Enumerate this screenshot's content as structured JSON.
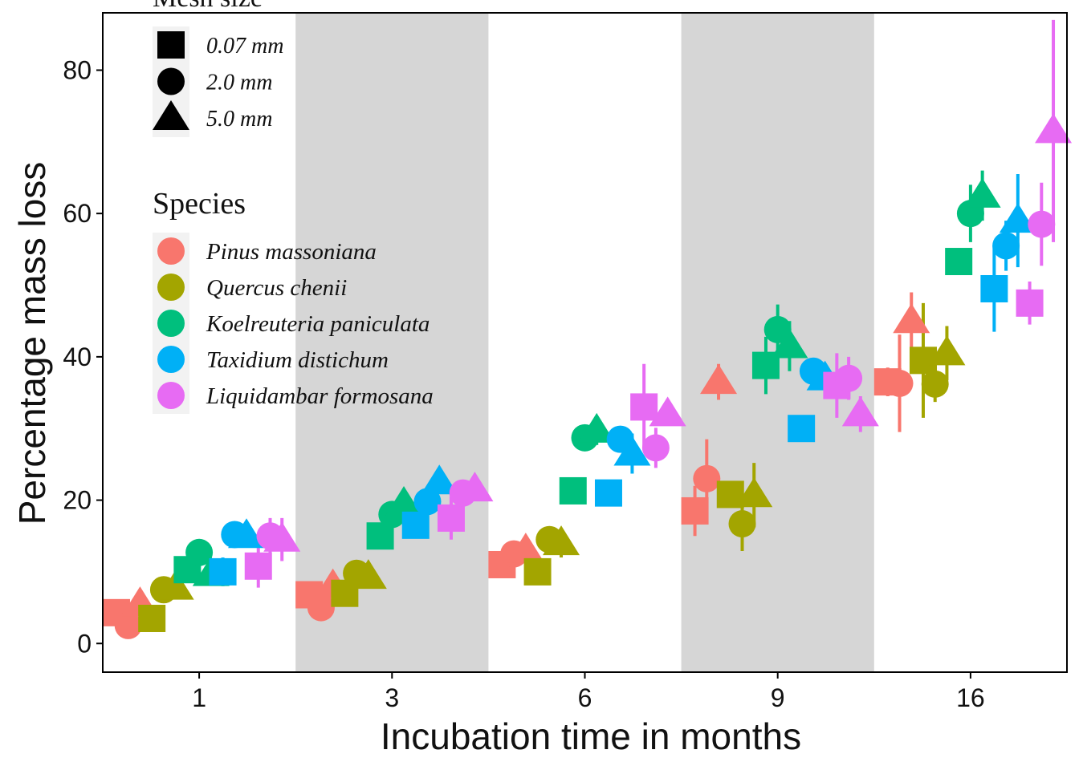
{
  "chart_data": {
    "type": "scatter",
    "title": "",
    "xlabel": "Incubation time in months",
    "ylabel": "Percentage mass loss",
    "categories": [
      "1",
      "3",
      "6",
      "9",
      "16"
    ],
    "ylim": [
      -4,
      88
    ],
    "yticks": [
      0,
      20,
      40,
      60,
      80
    ],
    "grid": false,
    "shaded_categories": [
      "3",
      "9"
    ],
    "colors": {
      "shade": "#d6d6d6",
      "Pinus massoniana": "#f8766d",
      "Quercus chenii": "#a3a500",
      "Koelreuteria paniculata": "#00bf7d",
      "Taxidium distichum": "#00b0f6",
      "Liquidambar formosana": "#e76bf3"
    },
    "legends": {
      "mesh": {
        "title": "Mesh size",
        "items": [
          {
            "label": "0.07 mm",
            "shape": "square"
          },
          {
            "label": "2.0 mm",
            "shape": "circle"
          },
          {
            "label": "5.0 mm",
            "shape": "triangle"
          }
        ]
      },
      "species": {
        "title": "Species",
        "items": [
          "Pinus massoniana",
          "Quercus chenii",
          "Koelreuteria paniculata",
          "Taxidium distichum",
          "Liquidambar formosana"
        ]
      }
    },
    "series": [
      {
        "name": "Pinus massoniana",
        "points": [
          {
            "month": "1",
            "mesh": "0.07 mm",
            "y": 4.3,
            "err": 0
          },
          {
            "month": "1",
            "mesh": "2.0 mm",
            "y": 2.5,
            "err": 0.8
          },
          {
            "month": "1",
            "mesh": "5.0 mm",
            "y": 5.5,
            "err": 0.8
          },
          {
            "month": "3",
            "mesh": "0.07 mm",
            "y": 6.8,
            "err": 0
          },
          {
            "month": "3",
            "mesh": "2.0 mm",
            "y": 5.0,
            "err": 1.5
          },
          {
            "month": "3",
            "mesh": "5.0 mm",
            "y": 8.0,
            "err": 1.5
          },
          {
            "month": "6",
            "mesh": "0.07 mm",
            "y": 11.0,
            "err": 0
          },
          {
            "month": "6",
            "mesh": "2.0 mm",
            "y": 12.5,
            "err": 0
          },
          {
            "month": "6",
            "mesh": "5.0 mm",
            "y": 13.0,
            "err": 0
          },
          {
            "month": "9",
            "mesh": "0.07 mm",
            "y": 18.5,
            "err": 3.5
          },
          {
            "month": "9",
            "mesh": "2.0 mm",
            "y": 23.0,
            "err": 5.5
          },
          {
            "month": "9",
            "mesh": "5.0 mm",
            "y": 36.5,
            "err": 2.5
          },
          {
            "month": "16",
            "mesh": "0.07 mm",
            "y": 36.5,
            "err": 2.0
          },
          {
            "month": "16",
            "mesh": "2.0 mm",
            "y": 36.3,
            "err": 6.8
          },
          {
            "month": "16",
            "mesh": "5.0 mm",
            "y": 45.0,
            "err": 4.0
          }
        ]
      },
      {
        "name": "Quercus chenii",
        "points": [
          {
            "month": "1",
            "mesh": "0.07 mm",
            "y": 3.5,
            "err": 0.8
          },
          {
            "month": "1",
            "mesh": "2.0 mm",
            "y": 7.5,
            "err": 0
          },
          {
            "month": "1",
            "mesh": "5.0 mm",
            "y": 7.8,
            "err": 0
          },
          {
            "month": "3",
            "mesh": "0.07 mm",
            "y": 7.0,
            "err": 0
          },
          {
            "month": "3",
            "mesh": "2.0 mm",
            "y": 9.8,
            "err": 0
          },
          {
            "month": "3",
            "mesh": "5.0 mm",
            "y": 9.3,
            "err": 0
          },
          {
            "month": "6",
            "mesh": "0.07 mm",
            "y": 10.0,
            "err": 0
          },
          {
            "month": "6",
            "mesh": "2.0 mm",
            "y": 14.5,
            "err": 0
          },
          {
            "month": "6",
            "mesh": "5.0 mm",
            "y": 14.0,
            "err": 2.0
          },
          {
            "month": "9",
            "mesh": "0.07 mm",
            "y": 20.8,
            "err": 0
          },
          {
            "month": "9",
            "mesh": "2.0 mm",
            "y": 16.7,
            "err": 3.8
          },
          {
            "month": "9",
            "mesh": "5.0 mm",
            "y": 20.7,
            "err": 4.5
          },
          {
            "month": "16",
            "mesh": "0.07 mm",
            "y": 39.5,
            "err": 8.0
          },
          {
            "month": "16",
            "mesh": "2.0 mm",
            "y": 36.2,
            "err": 2.5
          },
          {
            "month": "16",
            "mesh": "5.0 mm",
            "y": 40.5,
            "err": 3.8
          }
        ]
      },
      {
        "name": "Koelreuteria paniculata",
        "points": [
          {
            "month": "1",
            "mesh": "0.07 mm",
            "y": 10.3,
            "err": 0
          },
          {
            "month": "1",
            "mesh": "2.0 mm",
            "y": 12.7,
            "err": 0
          },
          {
            "month": "1",
            "mesh": "5.0 mm",
            "y": 9.7,
            "err": 0
          },
          {
            "month": "3",
            "mesh": "0.07 mm",
            "y": 15.0,
            "err": 0
          },
          {
            "month": "3",
            "mesh": "2.0 mm",
            "y": 18.0,
            "err": 0
          },
          {
            "month": "3",
            "mesh": "5.0 mm",
            "y": 19.5,
            "err": 0
          },
          {
            "month": "6",
            "mesh": "0.07 mm",
            "y": 21.3,
            "err": 0
          },
          {
            "month": "6",
            "mesh": "2.0 mm",
            "y": 28.7,
            "err": 0
          },
          {
            "month": "6",
            "mesh": "5.0 mm",
            "y": 29.7,
            "err": 2.0
          },
          {
            "month": "9",
            "mesh": "0.07 mm",
            "y": 38.8,
            "err": 4.0
          },
          {
            "month": "9",
            "mesh": "2.0 mm",
            "y": 43.8,
            "err": 3.5
          },
          {
            "month": "9",
            "mesh": "5.0 mm",
            "y": 41.5,
            "err": 3.5
          },
          {
            "month": "16",
            "mesh": "0.07 mm",
            "y": 53.3,
            "err": 0
          },
          {
            "month": "16",
            "mesh": "2.0 mm",
            "y": 60.0,
            "err": 4.0
          },
          {
            "month": "16",
            "mesh": "5.0 mm",
            "y": 62.5,
            "err": 3.5
          }
        ]
      },
      {
        "name": "Taxidium distichum",
        "points": [
          {
            "month": "1",
            "mesh": "0.07 mm",
            "y": 10.0,
            "err": 2.0
          },
          {
            "month": "1",
            "mesh": "2.0 mm",
            "y": 15.2,
            "err": 0
          },
          {
            "month": "1",
            "mesh": "5.0 mm",
            "y": 15.0,
            "err": 0
          },
          {
            "month": "3",
            "mesh": "0.07 mm",
            "y": 16.5,
            "err": 0
          },
          {
            "month": "3",
            "mesh": "2.0 mm",
            "y": 19.8,
            "err": 0
          },
          {
            "month": "3",
            "mesh": "5.0 mm",
            "y": 22.5,
            "err": 0
          },
          {
            "month": "6",
            "mesh": "0.07 mm",
            "y": 21.0,
            "err": 0
          },
          {
            "month": "6",
            "mesh": "2.0 mm",
            "y": 28.5,
            "err": 0
          },
          {
            "month": "6",
            "mesh": "5.0 mm",
            "y": 26.5,
            "err": 2.8
          },
          {
            "month": "9",
            "mesh": "0.07 mm",
            "y": 30.0,
            "err": 0
          },
          {
            "month": "9",
            "mesh": "2.0 mm",
            "y": 38.0,
            "err": 0
          },
          {
            "month": "9",
            "mesh": "5.0 mm",
            "y": 37.0,
            "err": 0
          },
          {
            "month": "16",
            "mesh": "0.07 mm",
            "y": 49.5,
            "err": 6.0
          },
          {
            "month": "16",
            "mesh": "2.0 mm",
            "y": 55.5,
            "err": 3.5
          },
          {
            "month": "16",
            "mesh": "5.0 mm",
            "y": 59.0,
            "err": 6.5
          }
        ]
      },
      {
        "name": "Liquidambar formosana",
        "points": [
          {
            "month": "1",
            "mesh": "0.07 mm",
            "y": 10.8,
            "err": 3.0
          },
          {
            "month": "1",
            "mesh": "2.0 mm",
            "y": 15.0,
            "err": 2.5
          },
          {
            "month": "1",
            "mesh": "5.0 mm",
            "y": 14.5,
            "err": 3.0
          },
          {
            "month": "3",
            "mesh": "0.07 mm",
            "y": 17.5,
            "err": 3.0
          },
          {
            "month": "3",
            "mesh": "2.0 mm",
            "y": 21.0,
            "err": 0
          },
          {
            "month": "3",
            "mesh": "5.0 mm",
            "y": 21.5,
            "err": 0
          },
          {
            "month": "6",
            "mesh": "0.07 mm",
            "y": 33.0,
            "err": 6.0
          },
          {
            "month": "6",
            "mesh": "2.0 mm",
            "y": 27.3,
            "err": 2.8
          },
          {
            "month": "6",
            "mesh": "5.0 mm",
            "y": 32.0,
            "err": 0
          },
          {
            "month": "9",
            "mesh": "0.07 mm",
            "y": 36.0,
            "err": 4.5
          },
          {
            "month": "9",
            "mesh": "2.0 mm",
            "y": 37.0,
            "err": 3.0
          },
          {
            "month": "9",
            "mesh": "5.0 mm",
            "y": 32.0,
            "err": 2.5
          },
          {
            "month": "16",
            "mesh": "0.07 mm",
            "y": 47.5,
            "err": 3.0
          },
          {
            "month": "16",
            "mesh": "2.0 mm",
            "y": 58.5,
            "err": 5.8
          },
          {
            "month": "16",
            "mesh": "5.0 mm",
            "y": 71.5,
            "err": 15.5
          }
        ]
      }
    ]
  }
}
